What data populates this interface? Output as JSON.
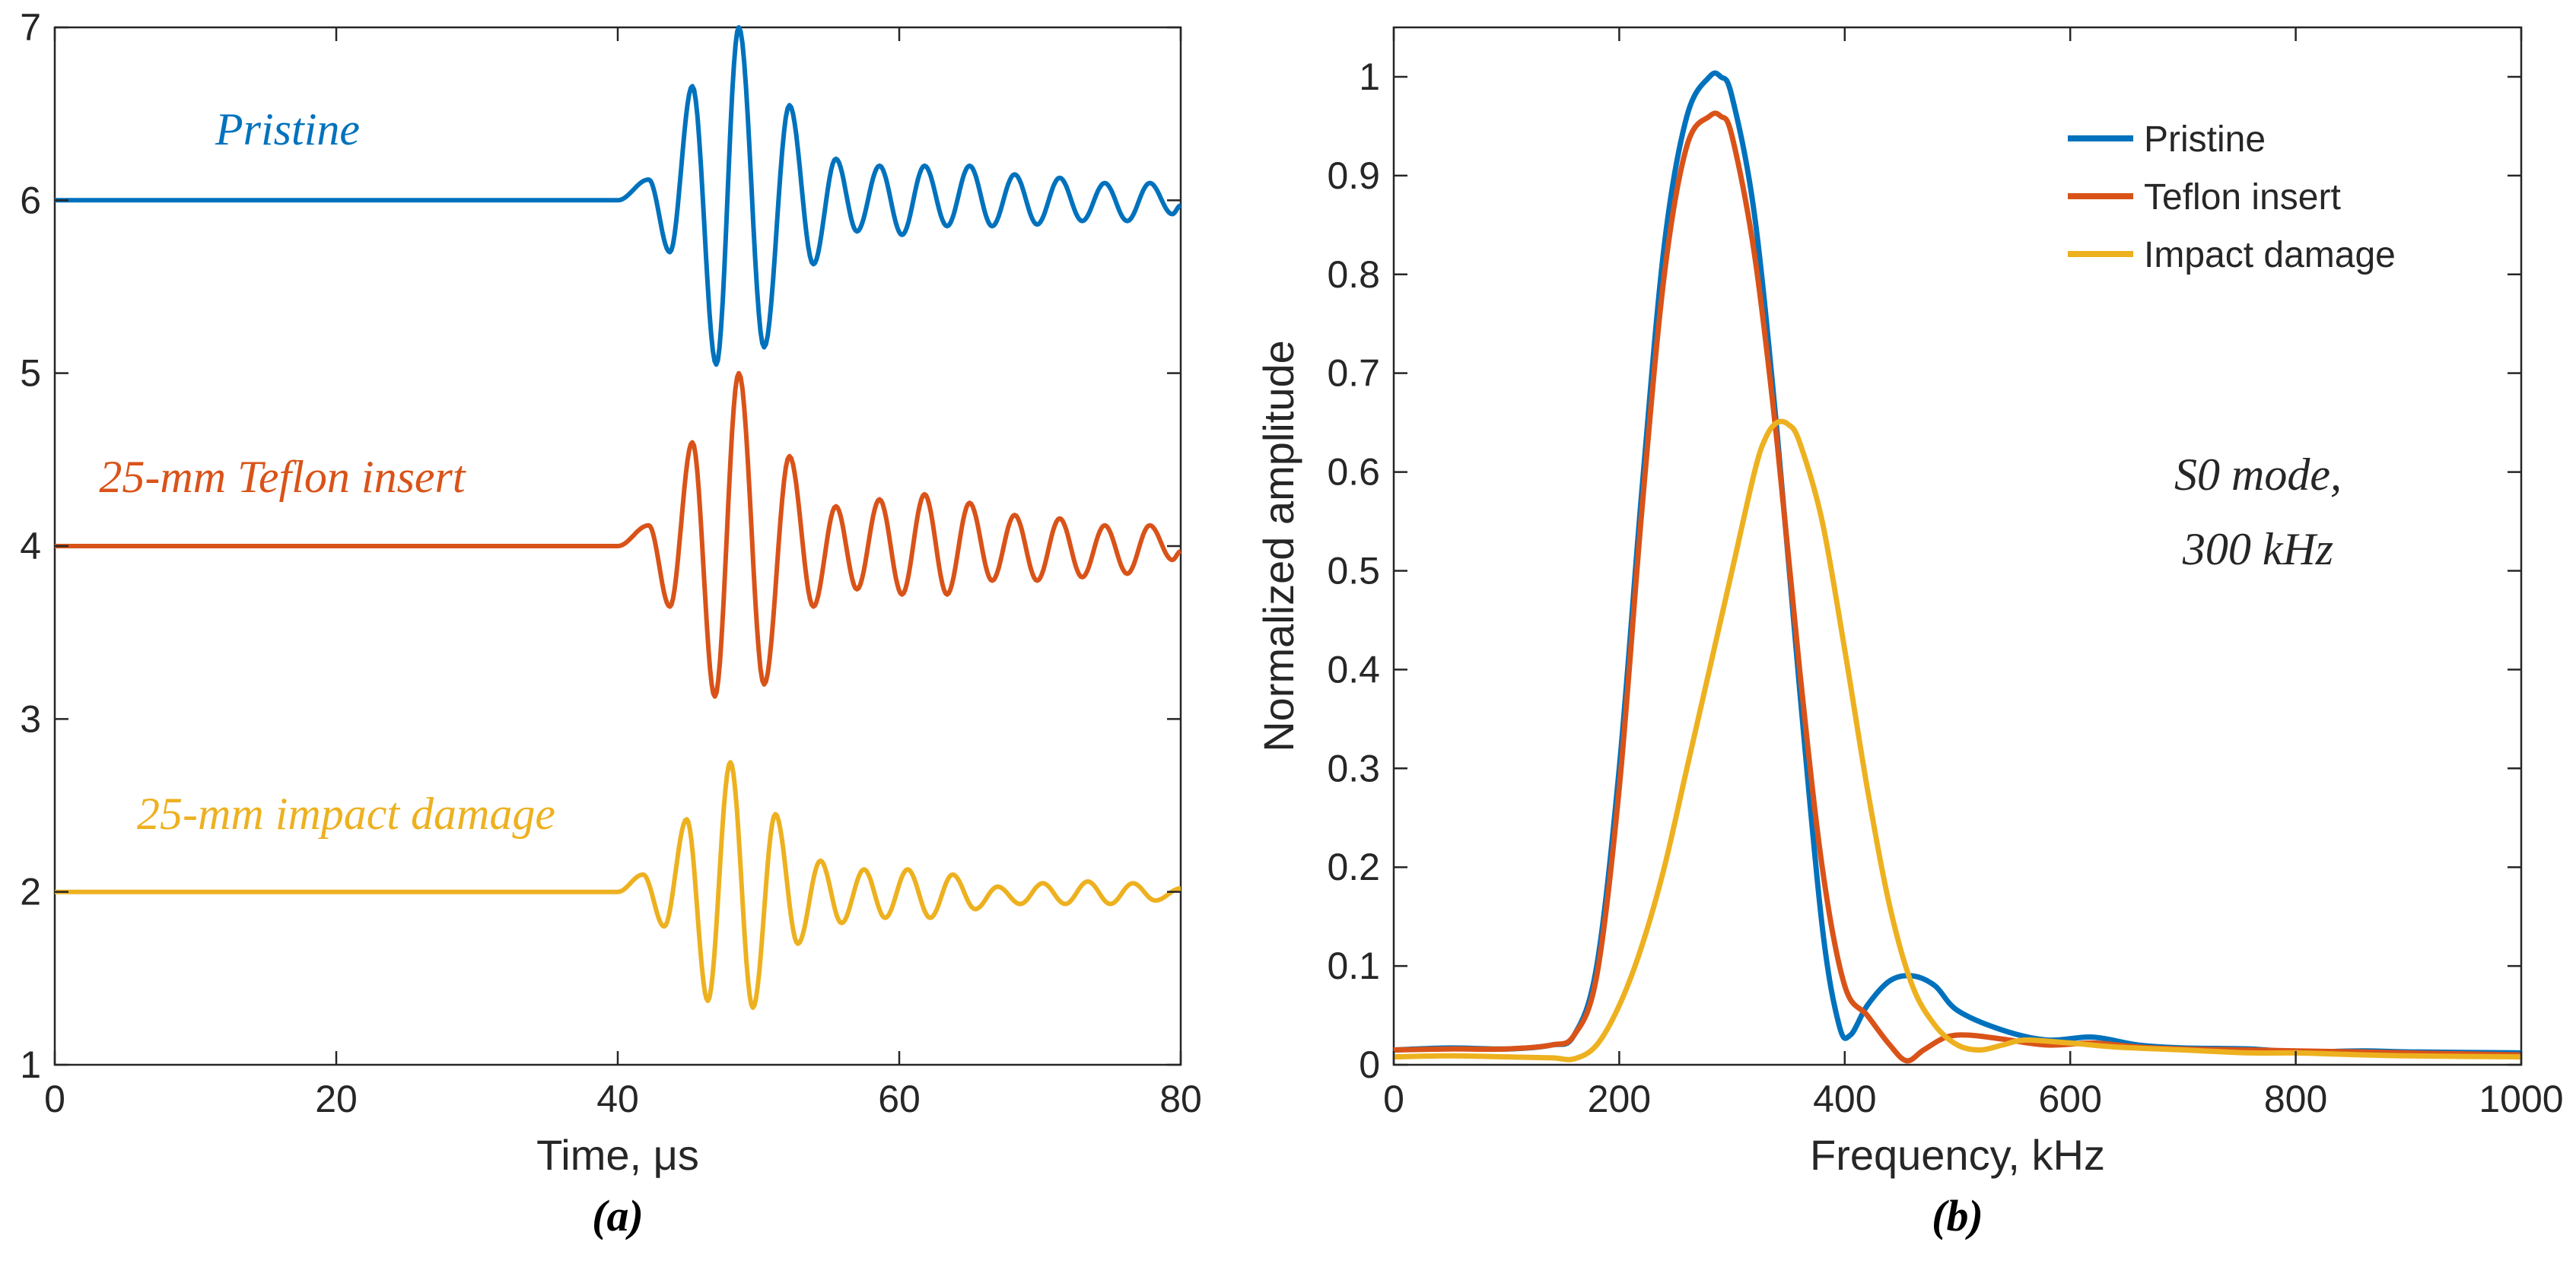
{
  "chart_data": [
    {
      "type": "line",
      "panel_label": "(a)",
      "title": "",
      "xlabel": "Time, μs",
      "ylabel": "",
      "xlim": [
        0,
        80
      ],
      "ylim": [
        1,
        7
      ],
      "xticks": [
        "0",
        "20",
        "40",
        "60",
        "80"
      ],
      "yticks": [
        "1",
        "2",
        "3",
        "4",
        "5",
        "6",
        "7"
      ],
      "grid": false,
      "series": [
        {
          "name": "Pristine",
          "color": "#0072BD",
          "baseline": 6,
          "onset": 40,
          "peaks": [
            [
              42.2,
              6.12
            ],
            [
              43.7,
              5.7
            ],
            [
              45.3,
              6.66
            ],
            [
              47.0,
              5.05
            ],
            [
              48.6,
              7.0
            ],
            [
              50.4,
              5.15
            ],
            [
              52.2,
              6.55
            ],
            [
              53.9,
              5.63
            ],
            [
              55.5,
              6.24
            ],
            [
              57.0,
              5.82
            ],
            [
              58.6,
              6.2
            ],
            [
              60.2,
              5.8
            ],
            [
              61.8,
              6.2
            ],
            [
              63.4,
              5.85
            ],
            [
              65.0,
              6.2
            ],
            [
              66.6,
              5.85
            ],
            [
              68.2,
              6.15
            ],
            [
              69.8,
              5.86
            ],
            [
              71.4,
              6.13
            ],
            [
              73.0,
              5.88
            ],
            [
              74.6,
              6.1
            ],
            [
              76.2,
              5.88
            ],
            [
              77.8,
              6.1
            ],
            [
              79.4,
              5.92
            ],
            [
              80.0,
              5.97
            ]
          ],
          "label": "Pristine"
        },
        {
          "name": "25-mm Teflon insert",
          "color": "#D95319",
          "baseline": 4,
          "onset": 40,
          "peaks": [
            [
              42.2,
              4.12
            ],
            [
              43.7,
              3.65
            ],
            [
              45.3,
              4.6
            ],
            [
              46.9,
              3.13
            ],
            [
              48.6,
              5.0
            ],
            [
              50.4,
              3.2
            ],
            [
              52.2,
              4.52
            ],
            [
              53.9,
              3.65
            ],
            [
              55.5,
              4.23
            ],
            [
              57.0,
              3.75
            ],
            [
              58.6,
              4.27
            ],
            [
              60.2,
              3.72
            ],
            [
              61.8,
              4.3
            ],
            [
              63.4,
              3.72
            ],
            [
              65.0,
              4.25
            ],
            [
              66.6,
              3.8
            ],
            [
              68.2,
              4.18
            ],
            [
              69.8,
              3.8
            ],
            [
              71.4,
              4.16
            ],
            [
              73.0,
              3.82
            ],
            [
              74.6,
              4.12
            ],
            [
              76.2,
              3.84
            ],
            [
              77.8,
              4.12
            ],
            [
              79.4,
              3.92
            ],
            [
              80.0,
              3.97
            ]
          ],
          "label": "25-mm Teflon insert"
        },
        {
          "name": "25-mm impact damage",
          "color": "#EDB120",
          "baseline": 2,
          "onset": 40,
          "peaks": [
            [
              41.8,
              2.1
            ],
            [
              43.3,
              1.8
            ],
            [
              44.9,
              2.42
            ],
            [
              46.4,
              1.37
            ],
            [
              48.0,
              2.75
            ],
            [
              49.6,
              1.33
            ],
            [
              51.2,
              2.45
            ],
            [
              52.8,
              1.7
            ],
            [
              54.4,
              2.18
            ],
            [
              55.9,
              1.82
            ],
            [
              57.5,
              2.13
            ],
            [
              59.0,
              1.85
            ],
            [
              60.6,
              2.13
            ],
            [
              62.2,
              1.85
            ],
            [
              63.8,
              2.1
            ],
            [
              65.4,
              1.9
            ],
            [
              67.0,
              2.03
            ],
            [
              68.6,
              1.93
            ],
            [
              70.2,
              2.05
            ],
            [
              71.8,
              1.93
            ],
            [
              73.4,
              2.06
            ],
            [
              75.0,
              1.93
            ],
            [
              76.6,
              2.05
            ],
            [
              78.2,
              1.95
            ],
            [
              80.0,
              2.02
            ]
          ],
          "label": "25-mm impact damage"
        }
      ]
    },
    {
      "type": "line",
      "panel_label": "(b)",
      "title": "",
      "xlabel": "Frequency, kHz",
      "ylabel": "Normalized amplitude",
      "xlim": [
        0,
        1000
      ],
      "ylim": [
        0,
        1.05
      ],
      "xticks": [
        "0",
        "200",
        "400",
        "600",
        "800",
        "1000"
      ],
      "yticks": [
        "0",
        "0.1",
        "0.2",
        "0.3",
        "0.4",
        "0.5",
        "0.6",
        "0.7",
        "0.8",
        "0.9",
        "1"
      ],
      "grid": false,
      "legend": "top-right",
      "annotation": [
        "S0 mode,",
        "300 kHz"
      ],
      "series": [
        {
          "name": "Pristine",
          "color": "#0072BD",
          "x": [
            0,
            50,
            100,
            140,
            160,
            180,
            200,
            220,
            240,
            260,
            280,
            290,
            300,
            320,
            340,
            360,
            380,
            395,
            405,
            420,
            440,
            460,
            480,
            500,
            540,
            580,
            620,
            660,
            700,
            760,
            800,
            860,
            900,
            1000
          ],
          "y": [
            0.015,
            0.017,
            0.016,
            0.02,
            0.03,
            0.1,
            0.3,
            0.58,
            0.83,
            0.96,
            1.0,
            1.0,
            0.98,
            0.86,
            0.64,
            0.38,
            0.14,
            0.04,
            0.03,
            0.06,
            0.085,
            0.09,
            0.08,
            0.055,
            0.035,
            0.025,
            0.028,
            0.02,
            0.017,
            0.016,
            0.013,
            0.014,
            0.013,
            0.012
          ]
        },
        {
          "name": "Teflon insert",
          "color": "#D95319",
          "x": [
            0,
            50,
            100,
            140,
            160,
            180,
            200,
            220,
            240,
            260,
            280,
            290,
            300,
            320,
            340,
            360,
            380,
            400,
            420,
            440,
            455,
            470,
            490,
            510,
            540,
            580,
            620,
            660,
            700,
            760,
            800,
            860,
            900,
            1000
          ],
          "y": [
            0.015,
            0.016,
            0.016,
            0.02,
            0.03,
            0.09,
            0.28,
            0.56,
            0.8,
            0.93,
            0.96,
            0.96,
            0.94,
            0.82,
            0.63,
            0.4,
            0.2,
            0.08,
            0.05,
            0.02,
            0.004,
            0.015,
            0.028,
            0.03,
            0.026,
            0.02,
            0.022,
            0.018,
            0.016,
            0.015,
            0.014,
            0.013,
            0.012,
            0.01
          ]
        },
        {
          "name": "Impact damage",
          "color": "#EDB120",
          "x": [
            0,
            50,
            100,
            140,
            160,
            180,
            200,
            220,
            240,
            260,
            280,
            300,
            320,
            330,
            340,
            350,
            360,
            380,
            400,
            420,
            440,
            460,
            480,
            500,
            520,
            540,
            560,
            600,
            640,
            700,
            760,
            800,
            860,
            900,
            1000
          ],
          "y": [
            0.008,
            0.009,
            0.008,
            0.007,
            0.006,
            0.02,
            0.06,
            0.12,
            0.2,
            0.3,
            0.4,
            0.5,
            0.6,
            0.635,
            0.65,
            0.648,
            0.63,
            0.55,
            0.42,
            0.28,
            0.16,
            0.08,
            0.04,
            0.02,
            0.015,
            0.02,
            0.025,
            0.022,
            0.018,
            0.015,
            0.012,
            0.012,
            0.01,
            0.009,
            0.008
          ]
        }
      ]
    }
  ]
}
